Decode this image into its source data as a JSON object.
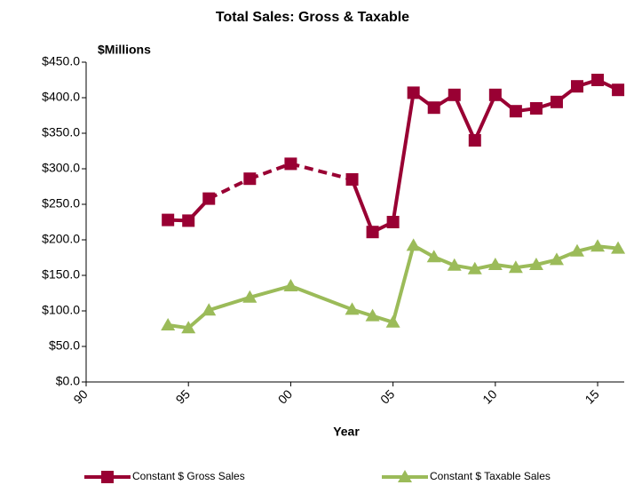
{
  "chart_data": {
    "type": "line",
    "title": "Total Sales: Gross & Taxable",
    "y_unit_label": "$Millions",
    "x_label": "Year",
    "x": [
      1994,
      1995,
      1996,
      1998,
      2000,
      2003,
      2004,
      2005,
      2006,
      2007,
      2008,
      2009,
      2010,
      2011,
      2012,
      2013,
      2014,
      2015,
      2016
    ],
    "series": [
      {
        "name": "Constant $ Gross Sales",
        "color": "#990033",
        "marker": "square",
        "values": [
          228,
          227,
          258,
          286,
          307,
          285,
          211,
          225,
          407,
          386,
          404,
          340,
          404,
          381,
          385,
          394,
          416,
          425,
          411
        ]
      },
      {
        "name": "Constant $ Taxable Sales",
        "color": "#9bbb59",
        "marker": "triangle",
        "values": [
          80,
          76,
          101,
          119,
          135,
          102,
          93,
          84,
          192,
          176,
          164,
          159,
          165,
          161,
          165,
          172,
          184,
          191,
          188
        ]
      }
    ],
    "xlim": [
      1990,
      2016.3
    ],
    "xticks": [
      {
        "value": 1990,
        "label": "90"
      },
      {
        "value": 1995,
        "label": "95"
      },
      {
        "value": 2000,
        "label": "00"
      },
      {
        "value": 2005,
        "label": "05"
      },
      {
        "value": 2010,
        "label": "10"
      },
      {
        "value": 2015,
        "label": "15"
      }
    ],
    "ylim": [
      0,
      450
    ],
    "yticks": [
      {
        "value": 0,
        "label": "$0.0"
      },
      {
        "value": 50,
        "label": "$50.0"
      },
      {
        "value": 100,
        "label": "$100.0"
      },
      {
        "value": 150,
        "label": "$150.0"
      },
      {
        "value": 200,
        "label": "$200.0"
      },
      {
        "value": 250,
        "label": "$250.0"
      },
      {
        "value": 300,
        "label": "$300.0"
      },
      {
        "value": 350,
        "label": "$350.0"
      },
      {
        "value": 400,
        "label": "$400.0"
      },
      {
        "value": 450,
        "label": "$450.0"
      }
    ],
    "grid": false,
    "legend": "bottom"
  }
}
